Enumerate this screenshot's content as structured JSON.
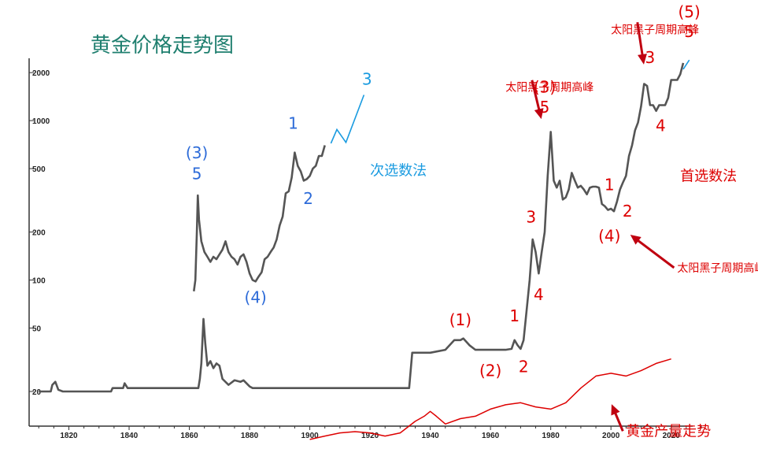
{
  "chart_data": {
    "type": "line",
    "title": "黄金价格走势图",
    "xlabel": "",
    "ylabel": "",
    "y_scale": "log",
    "xlim": [
      1810,
      2030
    ],
    "ylim": [
      13,
      2600
    ],
    "x_ticks": [
      1820,
      1840,
      1860,
      1880,
      1900,
      1920,
      1940,
      1960,
      1980,
      2000,
      2020
    ],
    "x_tick_labels": [
      "1820",
      "1840",
      "1860",
      "1880",
      "1900",
      "1920",
      "1940",
      "1960",
      "1980",
      "2000",
      "2020"
    ],
    "y_ticks": [
      20,
      50,
      100,
      200,
      500,
      1000,
      2000
    ],
    "y_tick_labels": [
      "20",
      "50",
      "100",
      "200",
      "500",
      "1000",
      "2000"
    ],
    "grid": false,
    "series": [
      {
        "name": "",
        "color": "#555555",
        "points": [
          [
            1810,
            20
          ],
          [
            1814,
            20
          ],
          [
            1814.5,
            22
          ],
          [
            1815.5,
            23
          ],
          [
            1816.5,
            20.5
          ],
          [
            1818,
            20
          ],
          [
            1834,
            20
          ],
          [
            1834.5,
            21
          ],
          [
            1838,
            21
          ],
          [
            1838.5,
            22.5
          ],
          [
            1839.5,
            21
          ],
          [
            1863,
            21
          ],
          [
            1863.5,
            24
          ],
          [
            1864,
            30
          ],
          [
            1864.7,
            57
          ],
          [
            1865.3,
            40
          ],
          [
            1866,
            29
          ],
          [
            1867,
            31
          ],
          [
            1868,
            28
          ],
          [
            1869,
            30
          ],
          [
            1870,
            29
          ],
          [
            1871,
            24
          ],
          [
            1873,
            22
          ],
          [
            1875,
            23.5
          ],
          [
            1877,
            23
          ],
          [
            1878,
            23.5
          ],
          [
            1880,
            21.5
          ],
          [
            1881,
            21
          ],
          [
            1933,
            21
          ],
          [
            1934,
            35
          ],
          [
            1940,
            35
          ],
          [
            1945,
            36.5
          ],
          [
            1948,
            42
          ],
          [
            1950,
            42
          ],
          [
            1951,
            43
          ],
          [
            1953,
            39
          ],
          [
            1955,
            36.5
          ],
          [
            1965,
            36.5
          ],
          [
            1967,
            37
          ],
          [
            1968,
            42
          ],
          [
            1969,
            39
          ],
          [
            1970,
            37
          ],
          [
            1971,
            42
          ],
          [
            1972,
            65
          ],
          [
            1973,
            100
          ],
          [
            1974,
            180
          ],
          [
            1975,
            150
          ],
          [
            1976,
            110
          ],
          [
            1977,
            150
          ],
          [
            1978,
            200
          ],
          [
            1979,
            450
          ],
          [
            1980,
            850
          ],
          [
            1980.5,
            600
          ],
          [
            1981,
            420
          ],
          [
            1982,
            380
          ],
          [
            1983,
            420
          ],
          [
            1984,
            320
          ],
          [
            1985,
            330
          ],
          [
            1986,
            370
          ],
          [
            1987,
            470
          ],
          [
            1988,
            420
          ],
          [
            1989,
            380
          ],
          [
            1990,
            390
          ],
          [
            1991,
            370
          ],
          [
            1992,
            345
          ],
          [
            1993,
            380
          ],
          [
            1994,
            385
          ],
          [
            1995,
            385
          ],
          [
            1996,
            380
          ],
          [
            1997,
            300
          ],
          [
            1998,
            290
          ],
          [
            1999,
            275
          ],
          [
            2000,
            280
          ],
          [
            2001,
            270
          ],
          [
            2002,
            310
          ],
          [
            2003,
            370
          ],
          [
            2004,
            410
          ],
          [
            2005,
            450
          ],
          [
            2006,
            600
          ],
          [
            2007,
            700
          ],
          [
            2008,
            870
          ],
          [
            2009,
            975
          ],
          [
            2010,
            1225
          ],
          [
            2011,
            1700
          ],
          [
            2012,
            1650
          ],
          [
            2013,
            1250
          ],
          [
            2014,
            1250
          ],
          [
            2015,
            1150
          ],
          [
            2016,
            1250
          ],
          [
            2017,
            1250
          ],
          [
            2018,
            1250
          ],
          [
            2019,
            1390
          ],
          [
            2020,
            1800
          ],
          [
            2021,
            1800
          ],
          [
            2022,
            1800
          ],
          [
            2023,
            1950
          ],
          [
            2024,
            2300
          ]
        ]
      },
      {
        "name": "",
        "color": "#555555",
        "points": [
          [
            1861.5,
            85
          ],
          [
            1862,
            100
          ],
          [
            1862.5,
            200
          ],
          [
            1862.8,
            340
          ],
          [
            1863.2,
            240
          ],
          [
            1864,
            175
          ],
          [
            1865,
            150
          ],
          [
            1866,
            140
          ],
          [
            1867,
            130
          ],
          [
            1868,
            140
          ],
          [
            1869,
            135
          ],
          [
            1870,
            145
          ],
          [
            1871,
            155
          ],
          [
            1872,
            175
          ],
          [
            1873,
            150
          ],
          [
            1874,
            140
          ],
          [
            1875,
            135
          ],
          [
            1876,
            125
          ],
          [
            1877,
            140
          ],
          [
            1878,
            145
          ],
          [
            1879,
            130
          ],
          [
            1880,
            110
          ],
          [
            1881,
            100
          ],
          [
            1882,
            98
          ],
          [
            1883,
            105
          ],
          [
            1884,
            112
          ],
          [
            1885,
            135
          ],
          [
            1886,
            140
          ],
          [
            1887,
            150
          ],
          [
            1888,
            160
          ],
          [
            1889,
            180
          ],
          [
            1890,
            220
          ],
          [
            1891,
            250
          ],
          [
            1892,
            350
          ],
          [
            1893,
            360
          ],
          [
            1894,
            440
          ],
          [
            1895,
            630
          ],
          [
            1896,
            520
          ],
          [
            1897,
            480
          ],
          [
            1898,
            420
          ],
          [
            1899,
            430
          ],
          [
            1900,
            450
          ],
          [
            1901,
            500
          ],
          [
            1902,
            520
          ],
          [
            1903,
            600
          ],
          [
            1904,
            600
          ],
          [
            1905,
            700
          ]
        ]
      },
      {
        "name": "",
        "color": "#dd0000",
        "points": [
          [
            1900,
            10
          ],
          [
            1905,
            10.5
          ],
          [
            1910,
            11
          ],
          [
            1915,
            11.2
          ],
          [
            1920,
            11
          ],
          [
            1925,
            10.5
          ],
          [
            1930,
            11
          ],
          [
            1935,
            13
          ],
          [
            1938,
            14
          ],
          [
            1940,
            15
          ],
          [
            1942,
            14
          ],
          [
            1945,
            12.5
          ],
          [
            1950,
            13.5
          ],
          [
            1955,
            14
          ],
          [
            1960,
            15.5
          ],
          [
            1965,
            16.5
          ],
          [
            1970,
            17
          ],
          [
            1975,
            16
          ],
          [
            1980,
            15.5
          ],
          [
            1985,
            17
          ],
          [
            1990,
            21
          ],
          [
            1995,
            25
          ],
          [
            2000,
            26
          ],
          [
            2005,
            25
          ],
          [
            2010,
            27
          ],
          [
            2015,
            30
          ],
          [
            2020,
            32
          ]
        ]
      }
    ],
    "wave_projection": {
      "name": "",
      "color": "#1a9be0",
      "points": [
        [
          1907,
          720
        ],
        [
          1909,
          880
        ],
        [
          1912,
          730
        ],
        [
          1918,
          1450
        ],
        [
          2024,
          2100
        ],
        [
          2026,
          2400
        ]
      ]
    },
    "annotations": [
      {
        "text": "(3)",
        "x": 1862.5,
        "y": 580,
        "color": "#2d6bd8"
      },
      {
        "text": "5",
        "x": 1862.5,
        "y": 430,
        "color": "#2d6bd8"
      },
      {
        "text": "1",
        "x": 1894.5,
        "y": 890,
        "color": "#2d6bd8"
      },
      {
        "text": "2",
        "x": 1899.5,
        "y": 300,
        "color": "#2d6bd8"
      },
      {
        "text": "(4)",
        "x": 1882,
        "y": 72,
        "color": "#2d6bd8"
      },
      {
        "text": "3",
        "x": 1919,
        "y": 1680,
        "color": "#1a9be0"
      },
      {
        "text": "次选数法",
        "x": 1920,
        "y": 455,
        "color": "#1a9be0"
      },
      {
        "text": "(1)",
        "x": 1950,
        "y": 52,
        "color": "#dd0000"
      },
      {
        "text": "(2)",
        "x": 1960,
        "y": 25,
        "color": "#dd0000"
      },
      {
        "text": "1",
        "x": 1968,
        "y": 55,
        "color": "#dd0000"
      },
      {
        "text": "2",
        "x": 1971,
        "y": 26.5,
        "color": "#dd0000"
      },
      {
        "text": "3",
        "x": 1973.5,
        "y": 230,
        "color": "#dd0000"
      },
      {
        "text": "4",
        "x": 1976,
        "y": 75,
        "color": "#dd0000"
      },
      {
        "text": "(3)",
        "x": 1978,
        "y": 1500,
        "color": "#dd0000"
      },
      {
        "text": "5",
        "x": 1978,
        "y": 1120,
        "color": "#dd0000"
      },
      {
        "text": "1",
        "x": 1999.5,
        "y": 365,
        "color": "#dd0000"
      },
      {
        "text": "2",
        "x": 2005.5,
        "y": 250,
        "color": "#dd0000"
      },
      {
        "text": "(4)",
        "x": 1999.5,
        "y": 175,
        "color": "#dd0000"
      },
      {
        "text": "3",
        "x": 2013,
        "y": 2300,
        "color": "#dd0000"
      },
      {
        "text": "4",
        "x": 2016.5,
        "y": 860,
        "color": "#dd0000"
      },
      {
        "text": "(5)",
        "x": 2026,
        "y": 4450,
        "color": "#dd0000"
      },
      {
        "text": "5",
        "x": 2026,
        "y": 3350,
        "color": "#dd0000"
      },
      {
        "text": "首选数法",
        "x": 2023,
        "y": 420,
        "color": "#dd0000"
      },
      {
        "text": "太阳黑子周期高峰",
        "x": 1965,
        "y": 1530,
        "color": "#dd0000",
        "arrow_to": [
          1977,
          1000
        ]
      },
      {
        "text": "太阳黑子周期高峰",
        "x": 2000,
        "y": 3530,
        "color": "#dd0000",
        "arrow_to": [
          2011,
          2200
        ]
      },
      {
        "text": "太阳黑子周期高峰",
        "x": 2022,
        "y": 113,
        "color": "#dd0000",
        "arrow_to": [
          2006,
          195
        ]
      },
      {
        "text": "黄金产量走势",
        "x": 2005,
        "y": 10.5,
        "color": "#dd0000",
        "arrow_to": [
          2000,
          17
        ]
      }
    ]
  }
}
